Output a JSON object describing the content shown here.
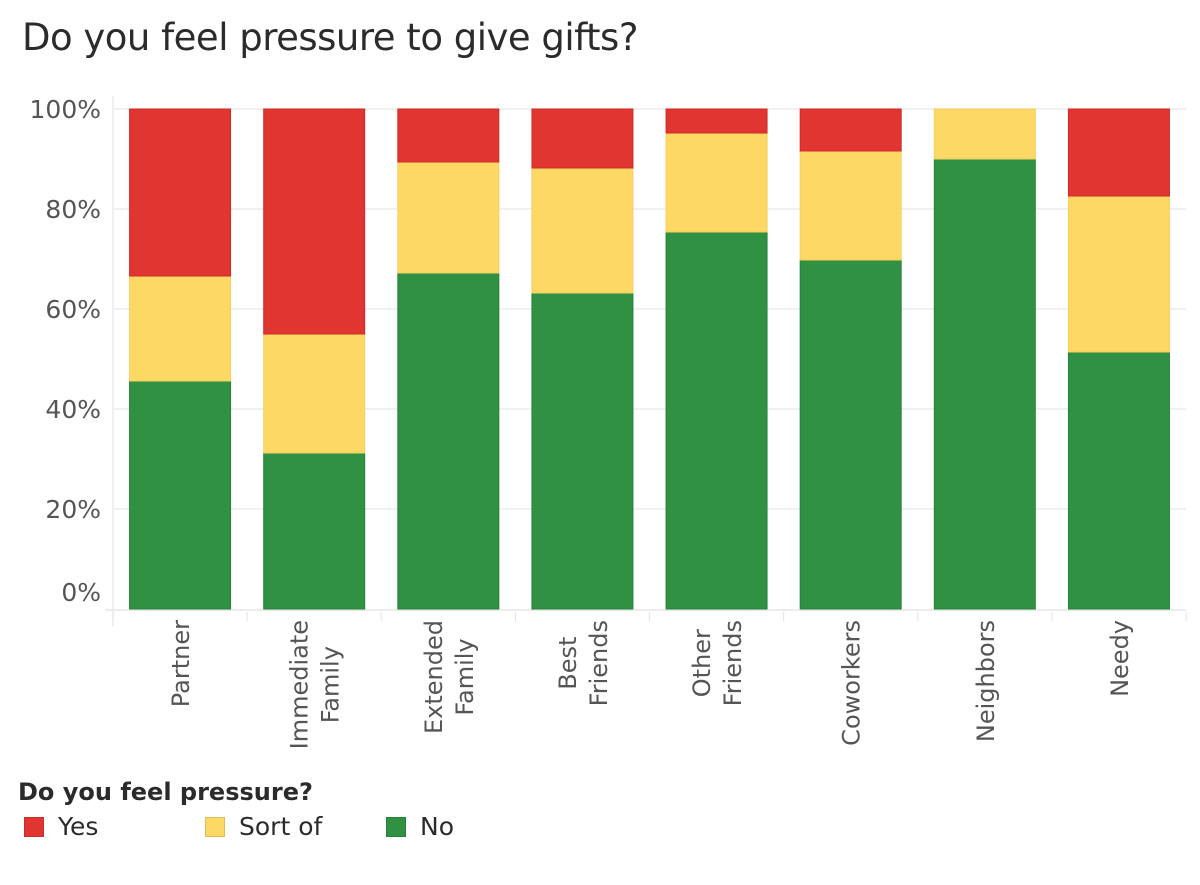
{
  "title": "Do you feel pressure to give gifts?",
  "legend": {
    "title": "Do you feel pressure?",
    "items": [
      {
        "label": "Yes",
        "color": "#e03531"
      },
      {
        "label": "Sort of",
        "color": "#fed865"
      },
      {
        "label": "No",
        "color": "#309143"
      }
    ]
  },
  "chart_data": {
    "type": "bar",
    "stacked": true,
    "normalized": true,
    "title": "Do you feel pressure to give gifts?",
    "xlabel": "",
    "ylabel": "",
    "ylim": [
      0,
      100
    ],
    "yticks": [
      "0%",
      "20%",
      "40%",
      "60%",
      "80%",
      "100%"
    ],
    "ytick_values": [
      0,
      20,
      40,
      60,
      80,
      100
    ],
    "grid": true,
    "legend_title": "Do you feel pressure?",
    "legend_position": "bottom-left",
    "categories": [
      "Partner",
      "Immediate Family",
      "Extended Family",
      "Best Friends",
      "Other Friends",
      "Coworkers",
      "Neighbors",
      "Needy"
    ],
    "category_label_lines": [
      [
        "Partner"
      ],
      [
        "Immediate",
        "Family"
      ],
      [
        "Extended",
        "Family"
      ],
      [
        "Best",
        "Friends"
      ],
      [
        "Other",
        "Friends"
      ],
      [
        "Coworkers"
      ],
      [
        "Neighbors"
      ],
      [
        "Needy"
      ]
    ],
    "series": [
      {
        "name": "No",
        "color": "#309143",
        "values": [
          45.6,
          31.2,
          67.2,
          63.2,
          75.4,
          69.8,
          90.0,
          51.4
        ]
      },
      {
        "name": "Sort of",
        "color": "#fed865",
        "values": [
          21.0,
          23.8,
          22.2,
          25.0,
          19.8,
          21.8,
          10.0,
          31.2
        ]
      },
      {
        "name": "Yes",
        "color": "#e03531",
        "values": [
          33.4,
          45.0,
          10.6,
          11.8,
          4.8,
          8.4,
          0.0,
          17.4
        ]
      }
    ]
  }
}
